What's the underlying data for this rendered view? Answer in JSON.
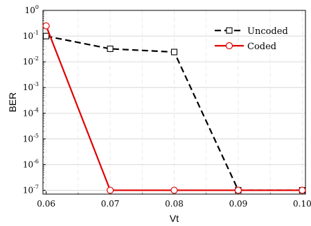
{
  "chart_data": {
    "type": "line",
    "xlabel": "Vt",
    "ylabel": "BER",
    "x": [
      0.06,
      0.07,
      0.08,
      0.09,
      0.1
    ],
    "xlim": [
      0.0595,
      0.1005
    ],
    "x_ticks": [
      "0.06",
      "0.07",
      "0.08",
      "0.09",
      "0.10"
    ],
    "yscale": "log",
    "ylim_exp": [
      -7.15,
      0
    ],
    "y_ticks": [
      {
        "base": "10",
        "exp": "0"
      },
      {
        "base": "10",
        "exp": "-1"
      },
      {
        "base": "10",
        "exp": "-2"
      },
      {
        "base": "10",
        "exp": "-3"
      },
      {
        "base": "10",
        "exp": "-4"
      },
      {
        "base": "10",
        "exp": "-5"
      },
      {
        "base": "10",
        "exp": "-6"
      },
      {
        "base": "10",
        "exp": "-7"
      }
    ],
    "grid": true,
    "legend_position": "top-right",
    "series": [
      {
        "name": "Uncoded",
        "color": "#000000",
        "line_style": "dashed",
        "marker": "square",
        "values": [
          0.1,
          0.032,
          0.024,
          1e-07,
          1e-07
        ]
      },
      {
        "name": "Coded",
        "color": "#e00000",
        "line_style": "solid",
        "marker": "circle",
        "values": [
          0.25,
          1e-07,
          1e-07,
          1e-07,
          1e-07
        ]
      }
    ]
  }
}
